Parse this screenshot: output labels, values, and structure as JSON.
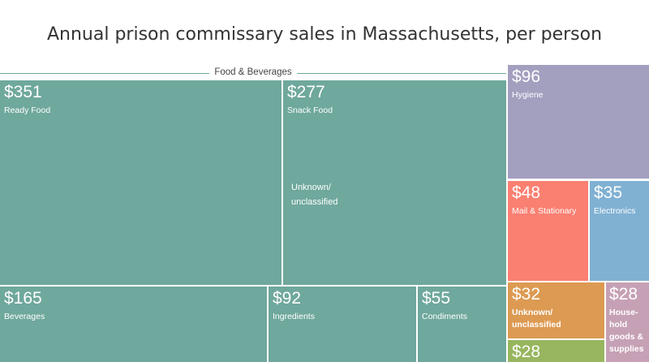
{
  "chart_data": {
    "type": "treemap",
    "title": "Annual prison commissary sales in Massachusetts, per person",
    "group_label": "Food & Beverages",
    "unit": "$",
    "items": [
      {
        "label": "Ready Food",
        "value": 351,
        "display": "$351",
        "group": "Food & Beverages",
        "color": "#6fa89d"
      },
      {
        "label": "Snack Food",
        "value": 277,
        "display": "$277",
        "group": "Food & Beverages",
        "color": "#6fa89d"
      },
      {
        "label": "Beverages",
        "value": 165,
        "display": "$165",
        "group": "Food & Beverages",
        "color": "#6fa89d"
      },
      {
        "label": "Ingredients",
        "value": 92,
        "display": "$92",
        "group": "Food & Beverages",
        "color": "#6fa89d"
      },
      {
        "label": "Condiments",
        "value": 55,
        "display": "$55",
        "group": "Food & Beverages",
        "color": "#6fa89d"
      },
      {
        "label": "Hygiene",
        "value": 96,
        "display": "$96",
        "color": "#a39fbf"
      },
      {
        "label": "Mail & Stationary",
        "value": 48,
        "display": "$48",
        "color": "#fa8072"
      },
      {
        "label": "Electronics",
        "value": 35,
        "display": "$35",
        "color": "#80b1d3"
      },
      {
        "label": "Unknown/ unclassified",
        "value": 32,
        "display": "$32",
        "color": "#dd9a52"
      },
      {
        "label": "",
        "value": 28,
        "display": "$28",
        "color": "#97b65f"
      },
      {
        "label": "House-hold goods & supplies",
        "value": 28,
        "display": "$28",
        "color": "#c6a1b5"
      }
    ],
    "inner_annotation": "Unknown/ unclassified"
  }
}
